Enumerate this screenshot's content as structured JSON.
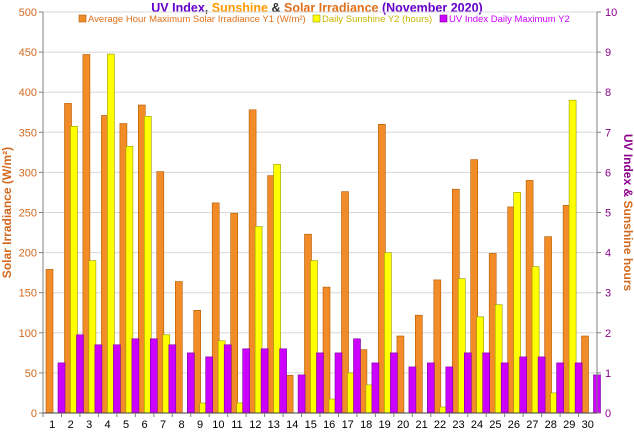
{
  "colors": {
    "irradiance": "#f28c28",
    "irradiance_stroke": "#b35a00",
    "sunshine": "#ffff00",
    "sunshine_stroke": "#9a9a00",
    "uv": "#cc00ff",
    "uv_stroke": "#7a0099",
    "title_uv": "#6600cc",
    "title_amp": "#333333",
    "title_sunshine": "#ff9900",
    "title_irradiance": "#e0701a",
    "left_axis": "#d2691e",
    "right_axis": "#8b008b",
    "grid": "#d8d8d8"
  },
  "chart_data": {
    "type": "bar",
    "title_parts": [
      {
        "text": "UV Index",
        "color_key": "title_uv"
      },
      {
        "text": ", ",
        "color_key": "title_amp"
      },
      {
        "text": "Sunshine",
        "color_key": "title_sunshine"
      },
      {
        "text": " & ",
        "color_key": "title_amp"
      },
      {
        "text": "Solar Irradiance",
        "color_key": "title_irradiance"
      },
      {
        "text": " (November 2020)",
        "color_key": "title_uv"
      }
    ],
    "ylabel_left": "Solar Irradiance (W/m²)",
    "ylabel_right_parts": [
      {
        "text": "UV Index",
        "color_key": "right_axis"
      },
      {
        "text": " & ",
        "color_key": "right_axis"
      },
      {
        "text": "Sunshine hours",
        "color_key": "left_axis"
      }
    ],
    "y1_lim": [
      0,
      500
    ],
    "y1_ticks": [
      0,
      50,
      100,
      150,
      200,
      250,
      300,
      350,
      400,
      450,
      500
    ],
    "y2_lim": [
      0,
      10
    ],
    "y2_ticks": [
      0,
      1,
      2,
      3,
      4,
      5,
      6,
      7,
      8,
      9,
      10
    ],
    "grid": true,
    "legend_position": "top",
    "categories": [
      "1",
      "2",
      "3",
      "4",
      "5",
      "6",
      "7",
      "8",
      "9",
      "10",
      "11",
      "12",
      "13",
      "14",
      "15",
      "16",
      "17",
      "18",
      "19",
      "20",
      "21",
      "22",
      "23",
      "24",
      "25",
      "26",
      "27",
      "28",
      "29",
      "30"
    ],
    "series": [
      {
        "name": "Average Hour Maximum Solar Irradiance Y1 (W/m²)",
        "axis": "y1",
        "color_key": "irradiance",
        "values": [
          179,
          386,
          447,
          371,
          361,
          384,
          301,
          164,
          128,
          262,
          249,
          378,
          296,
          47,
          223,
          157,
          276,
          79,
          360,
          96,
          122,
          166,
          279,
          316,
          199,
          257,
          290,
          220,
          259,
          96
        ]
      },
      {
        "name": "Daily Sunshine Y2 (hours)",
        "axis": "y2",
        "color_key": "sunshine",
        "values": [
          0,
          7.15,
          3.8,
          8.95,
          6.65,
          7.4,
          1.95,
          0,
          0.25,
          1.8,
          0.25,
          4.65,
          6.2,
          0,
          3.8,
          0.35,
          1.0,
          0.7,
          4.0,
          0,
          0,
          0.15,
          3.35,
          2.4,
          2.7,
          5.5,
          3.65,
          0.5,
          7.8,
          0
        ]
      },
      {
        "name": "UV Index Daily Maximum Y2",
        "axis": "y2",
        "color_key": "uv",
        "values": [
          1.25,
          1.95,
          1.7,
          1.7,
          1.85,
          1.85,
          1.7,
          1.5,
          1.4,
          1.7,
          1.6,
          1.6,
          1.6,
          0.95,
          1.5,
          1.5,
          1.85,
          1.25,
          1.5,
          1.15,
          1.25,
          1.15,
          1.5,
          1.5,
          1.25,
          1.4,
          1.4,
          1.25,
          1.25,
          0.95
        ]
      }
    ]
  }
}
